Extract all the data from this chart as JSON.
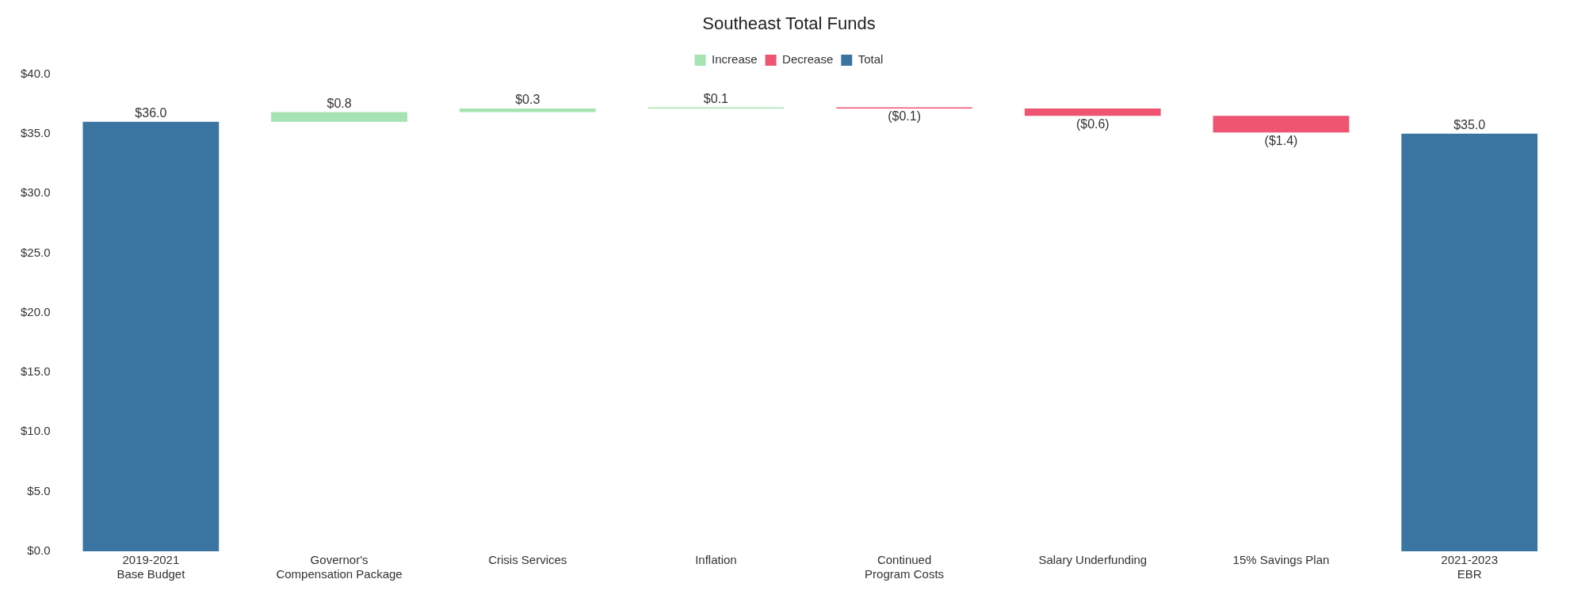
{
  "chart_data": {
    "type": "bar",
    "title": "Southeast Total Funds",
    "categories": [
      "2019-2021\nBase Budget",
      "Governor's\nCompensation Package",
      "Crisis Services",
      "Inflation",
      "Continued\nProgram Costs",
      "Salary Underfunding",
      "15% Savings Plan",
      "2021-2023\nEBR"
    ],
    "series": [
      {
        "name": "Increase",
        "color": "#a6e3b2",
        "values": [
          null,
          0.8,
          0.3,
          0.1,
          null,
          null,
          null,
          null
        ],
        "base": [
          null,
          36.0,
          36.8,
          37.1,
          null,
          null,
          null,
          null
        ],
        "value_labels": [
          null,
          "$0.8",
          "$0.3",
          "$0.1",
          null,
          null,
          null,
          null
        ]
      },
      {
        "name": "Decrease",
        "color": "#ef5470",
        "values": [
          null,
          null,
          null,
          null,
          -0.1,
          -0.6,
          -1.4,
          null
        ],
        "base": [
          null,
          null,
          null,
          null,
          37.2,
          37.1,
          36.5,
          null
        ],
        "value_labels": [
          null,
          null,
          null,
          null,
          "($0.1)",
          "($0.6)",
          "($1.4)",
          null
        ]
      },
      {
        "name": "Total",
        "color": "#3a75a2",
        "values": [
          36.0,
          null,
          null,
          null,
          null,
          null,
          null,
          35.0
        ],
        "base": [
          0,
          null,
          null,
          null,
          null,
          null,
          null,
          0
        ],
        "value_labels": [
          "$36.0",
          null,
          null,
          null,
          null,
          null,
          null,
          "$35.0"
        ]
      }
    ],
    "ylim": [
      0,
      40
    ],
    "yticks": [
      {
        "value": 0,
        "label": "$0.0"
      },
      {
        "value": 5,
        "label": "$5.0"
      },
      {
        "value": 10,
        "label": "$10.0"
      },
      {
        "value": 15,
        "label": "$15.0"
      },
      {
        "value": 20,
        "label": "$20.0"
      },
      {
        "value": 25,
        "label": "$25.0"
      },
      {
        "value": 30,
        "label": "$30.0"
      },
      {
        "value": 35,
        "label": "$35.0"
      },
      {
        "value": 40,
        "label": "$40.0"
      }
    ],
    "legend": "top"
  }
}
